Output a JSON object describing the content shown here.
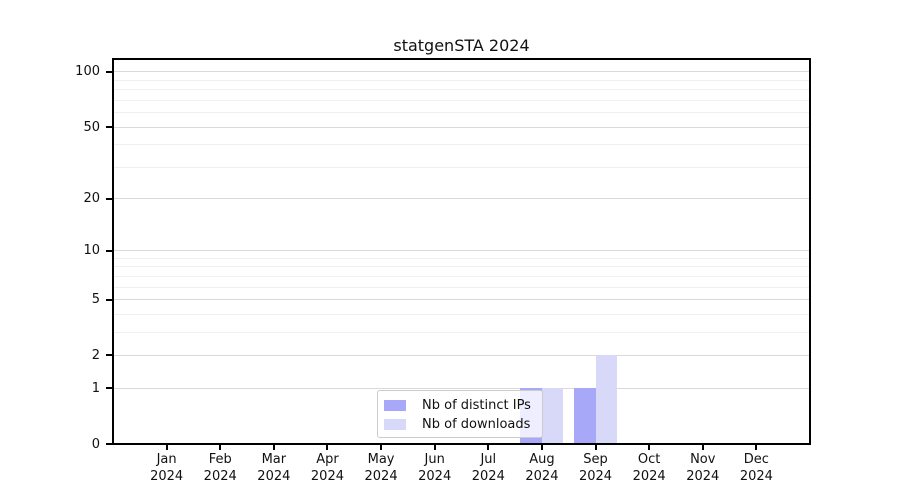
{
  "figure": {
    "title": "statgenSTA 2024"
  },
  "chart_data": {
    "type": "bar",
    "title": "statgenSTA 2024",
    "x_categories": [
      {
        "month": "Jan",
        "year": "2024"
      },
      {
        "month": "Feb",
        "year": "2024"
      },
      {
        "month": "Mar",
        "year": "2024"
      },
      {
        "month": "Apr",
        "year": "2024"
      },
      {
        "month": "May",
        "year": "2024"
      },
      {
        "month": "Jun",
        "year": "2024"
      },
      {
        "month": "Jul",
        "year": "2024"
      },
      {
        "month": "Aug",
        "year": "2024"
      },
      {
        "month": "Sep",
        "year": "2024"
      },
      {
        "month": "Oct",
        "year": "2024"
      },
      {
        "month": "Nov",
        "year": "2024"
      },
      {
        "month": "Dec",
        "year": "2024"
      }
    ],
    "series": [
      {
        "name": "Nb of distinct IPs",
        "color": "#a8a8f8",
        "values": [
          0,
          0,
          0,
          0,
          0,
          0,
          0,
          1,
          1,
          0,
          0,
          0
        ]
      },
      {
        "name": "Nb of downloads",
        "color": "#d8d8f8",
        "values": [
          0,
          0,
          0,
          0,
          0,
          0,
          0,
          1,
          2,
          0,
          0,
          0
        ]
      }
    ],
    "y_axis": {
      "scale": "log1p",
      "ticks": [
        0,
        1,
        2,
        5,
        10,
        20,
        50,
        100
      ],
      "minor_gridlines": [
        3,
        4,
        6,
        7,
        8,
        9,
        30,
        40,
        60,
        70,
        80,
        90
      ],
      "ylim": [
        0,
        117
      ]
    },
    "xlabel": "",
    "ylabel": "",
    "grid": true,
    "legend": {
      "position": "bottom-center",
      "entries": [
        "Nb of distinct IPs",
        "Nb of downloads"
      ]
    },
    "colors": {
      "major_grid": "#d9d9d9",
      "minor_grid": "#f0f0f0",
      "axis": "#000000",
      "background": "#ffffff"
    }
  }
}
